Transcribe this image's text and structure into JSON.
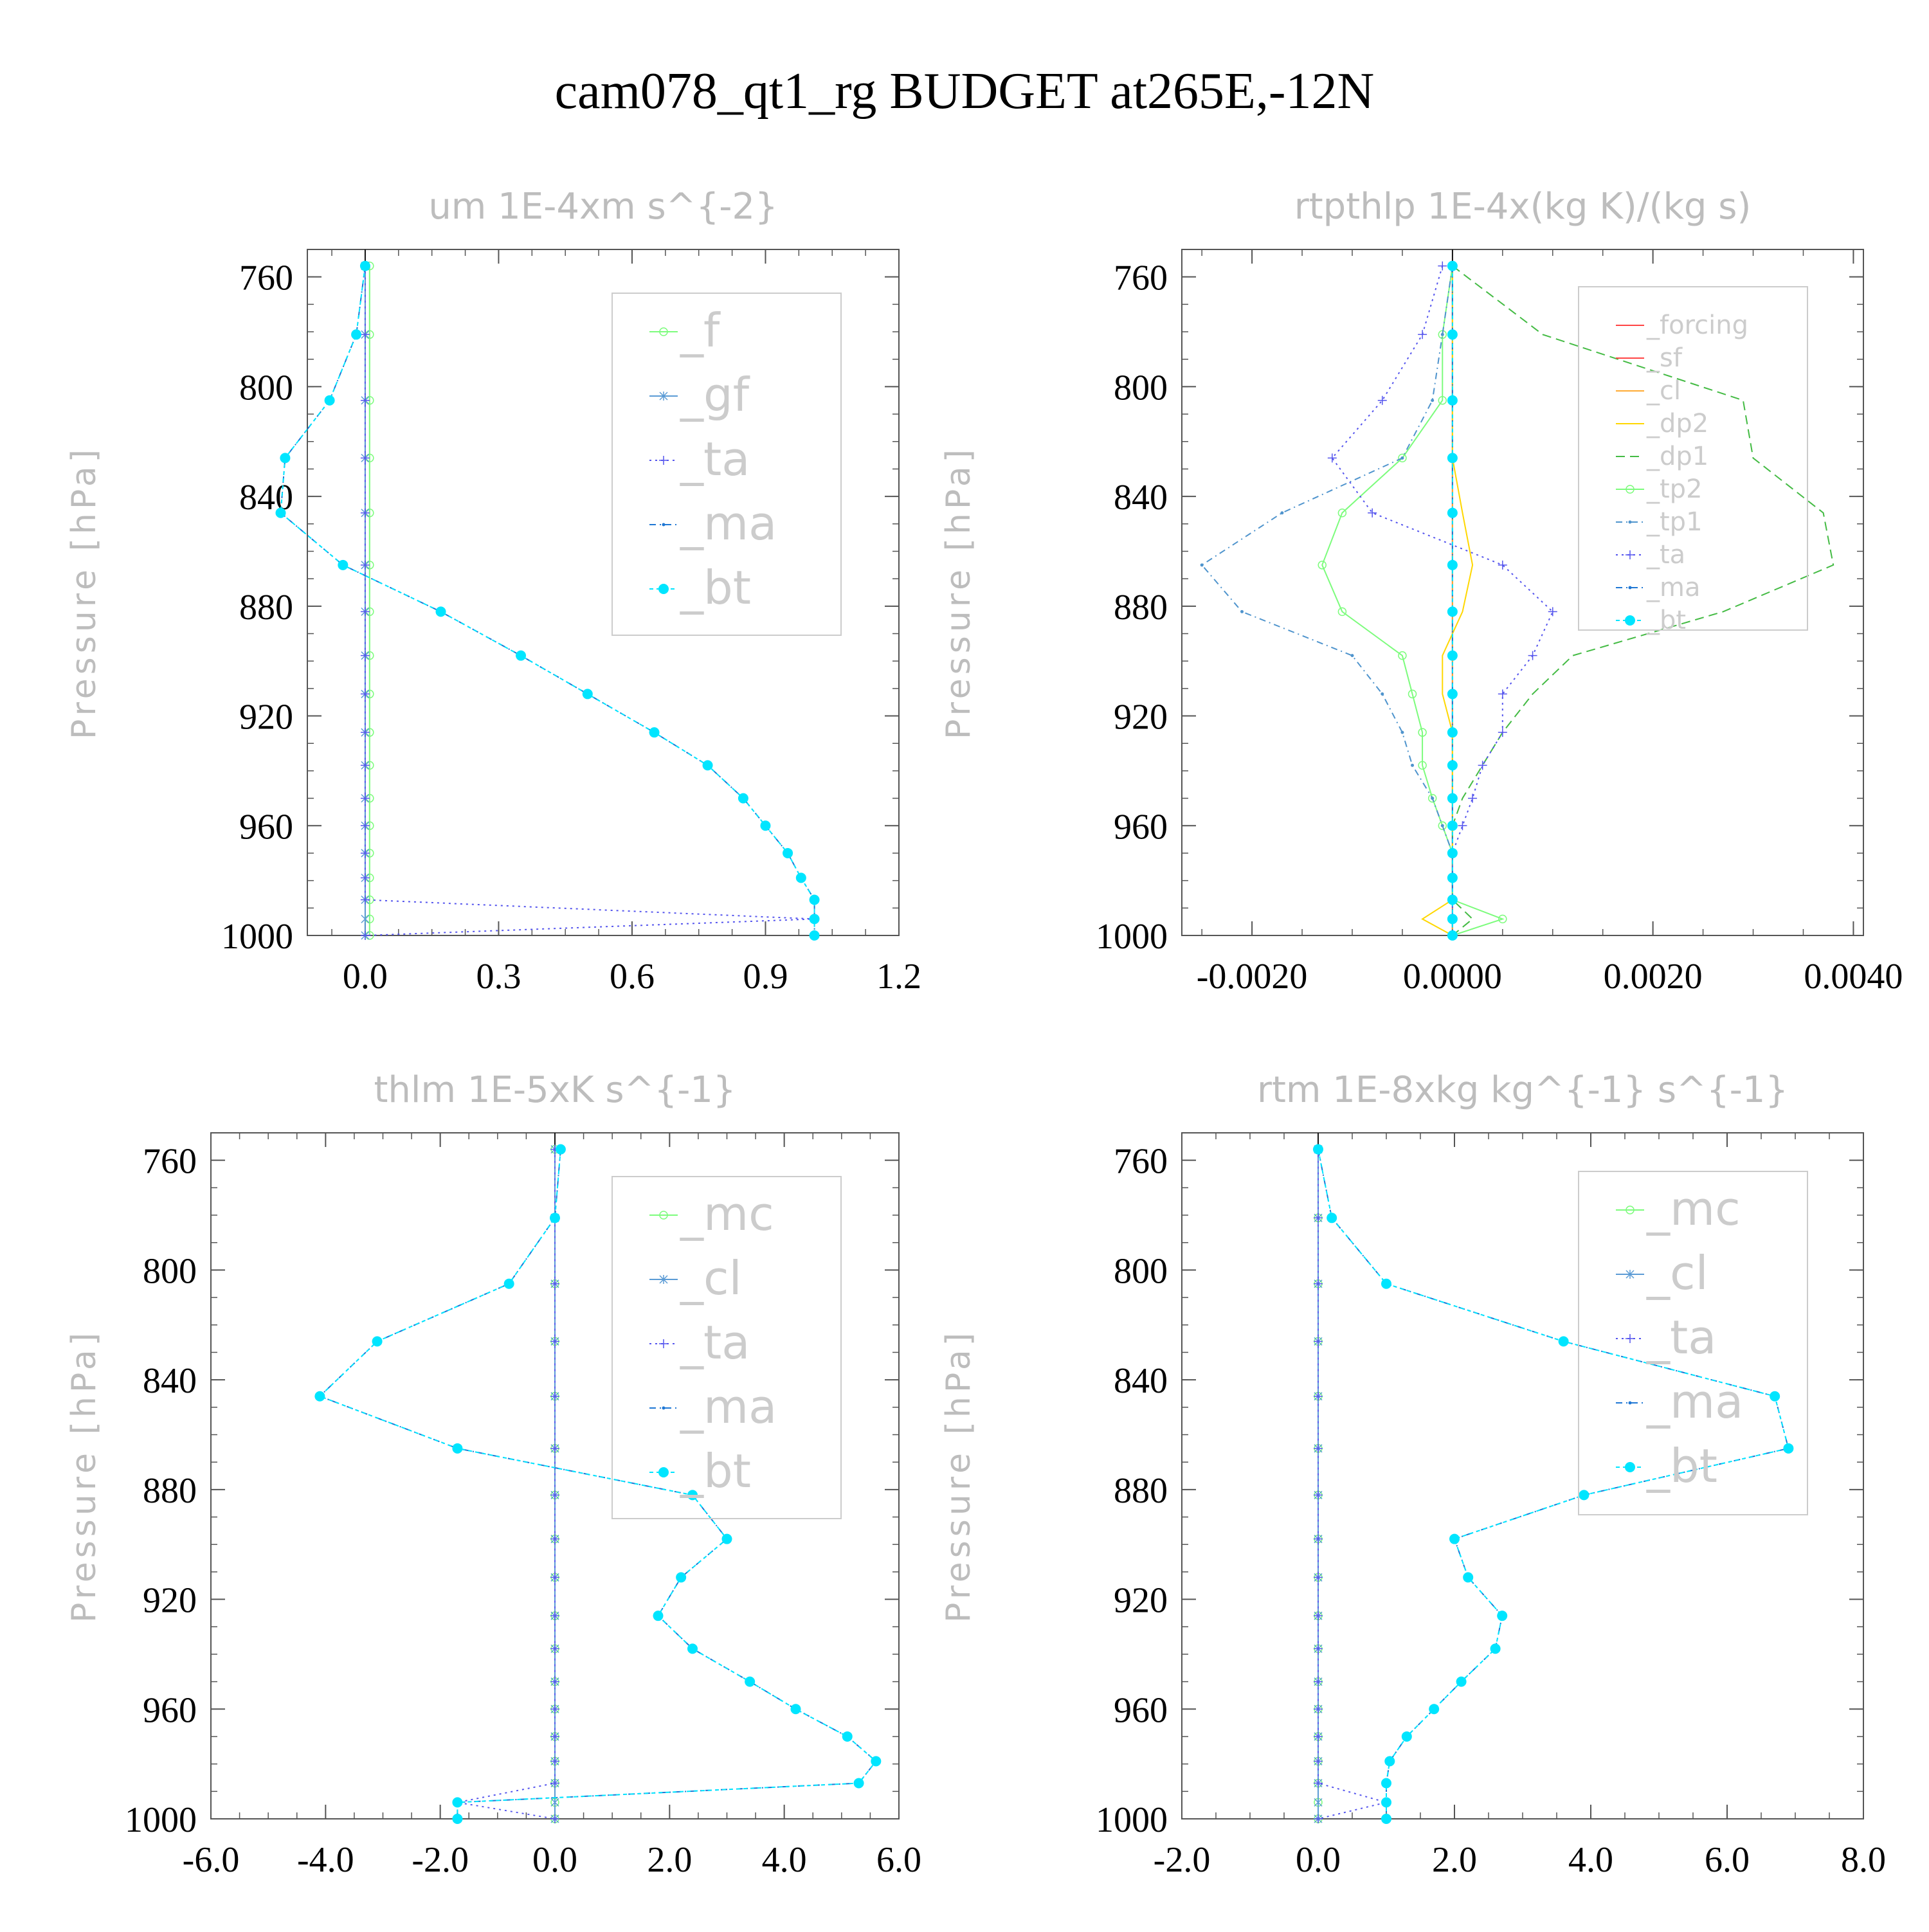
{
  "figure_title": "cam078_qt1_rg  BUDGET at265E,-12N",
  "colors": {
    "axis": "#555555",
    "title_gray": "#bdbdbd",
    "legend_gray": "#cccccc",
    "f": "#7CFC7C",
    "mc": "#7CFC7C",
    "gf": "#5b9bd5",
    "cl": "#5b9bd5",
    "ta": "#5555ee",
    "ma": "#1f77d4",
    "bt": "#00e5ff",
    "forcing": "#ff4444",
    "sf": "#ff4444",
    "cl_orange": "#ffaa33",
    "dp2": "#ffd700",
    "dp1": "#44bb44",
    "tp2": "#7CFC7C",
    "tp1": "#4f94cd"
  },
  "chart_data": [
    {
      "type": "line",
      "title": "um  1E-4xm s^{-2}",
      "ylabel": "Pressure [hPa]",
      "xlabel": "",
      "xlim": [
        -0.13,
        1.2
      ],
      "ylim": [
        1000,
        750
      ],
      "xticks": [
        "0.0",
        "0.3",
        "0.6",
        "0.9",
        "1.2"
      ],
      "xtick_values": [
        0.0,
        0.3,
        0.6,
        0.9,
        1.2
      ],
      "yticks": [
        "760",
        "800",
        "840",
        "880",
        "920",
        "960",
        "1000"
      ],
      "ytick_values": [
        760,
        800,
        840,
        880,
        920,
        960,
        1000
      ],
      "legend": [
        "_f",
        "_gf",
        "_ta",
        "_ma",
        "_bt"
      ],
      "pressure": [
        756,
        781,
        805,
        826,
        846,
        865,
        882,
        898,
        912,
        926,
        938,
        950,
        960,
        970,
        979,
        987,
        994,
        1000
      ],
      "series": [
        {
          "name": "_f",
          "color_key": "f",
          "style": "line-circle",
          "values": [
            0.01,
            0.01,
            0.01,
            0.01,
            0.01,
            0.01,
            0.01,
            0.01,
            0.01,
            0.01,
            0.01,
            0.01,
            0.01,
            0.01,
            0.01,
            0.01,
            0.01,
            0.01
          ]
        },
        {
          "name": "_gf",
          "color_key": "gf",
          "style": "line-star",
          "values": [
            0.0,
            0.0,
            0.0,
            0.0,
            0.0,
            0.0,
            0.0,
            0.0,
            0.0,
            0.0,
            0.0,
            0.0,
            0.0,
            0.0,
            0.0,
            0.0,
            0.0,
            0.0
          ]
        },
        {
          "name": "_ta",
          "color_key": "ta",
          "style": "dotted-plus",
          "values": [
            0.0,
            0.0,
            0.0,
            0.0,
            0.0,
            0.0,
            0.0,
            0.0,
            0.0,
            0.0,
            0.0,
            0.0,
            0.0,
            0.0,
            0.0,
            0.0,
            1.01,
            0.0
          ]
        },
        {
          "name": "_ma",
          "color_key": "ma",
          "style": "dash-dot",
          "values": [
            0.0,
            -0.02,
            -0.08,
            -0.18,
            -0.19,
            -0.05,
            0.17,
            0.35,
            0.5,
            0.65,
            0.77,
            0.85,
            0.9,
            0.95,
            0.98,
            1.01,
            1.01,
            1.01
          ]
        },
        {
          "name": "_bt",
          "color_key": "bt",
          "style": "dot-marker",
          "values": [
            0.0,
            -0.02,
            -0.08,
            -0.18,
            -0.19,
            -0.05,
            0.17,
            0.35,
            0.5,
            0.65,
            0.77,
            0.85,
            0.9,
            0.95,
            0.98,
            1.01,
            1.01,
            1.01
          ]
        }
      ]
    },
    {
      "type": "line",
      "title": "rtpthlp  1E-4x(kg K)/(kg s)",
      "ylabel": "Pressure [hPa]",
      "xlabel": "",
      "xlim": [
        -0.0027,
        0.0041
      ],
      "ylim": [
        1000,
        750
      ],
      "xticks": [
        "-0.0020",
        "0.0000",
        "0.0020",
        "0.0040"
      ],
      "xtick_values": [
        -0.002,
        0.0,
        0.002,
        0.004
      ],
      "yticks": [
        "760",
        "800",
        "840",
        "880",
        "920",
        "960",
        "1000"
      ],
      "ytick_values": [
        760,
        800,
        840,
        880,
        920,
        960,
        1000
      ],
      "legend": [
        "_forcing",
        "_sf",
        "_cl",
        "_dp2",
        "_dp1",
        "_tp2",
        "_tp1",
        "_ta",
        "_ma",
        "_bt"
      ],
      "pressure": [
        756,
        781,
        805,
        826,
        846,
        865,
        882,
        898,
        912,
        926,
        938,
        950,
        960,
        970,
        979,
        987,
        994,
        1000
      ],
      "series": [
        {
          "name": "_forcing",
          "color_key": "forcing",
          "style": "line",
          "values": [
            0,
            0,
            0,
            0,
            0,
            0,
            0,
            0,
            0,
            0,
            0,
            0,
            0,
            0,
            0,
            0,
            0,
            0
          ]
        },
        {
          "name": "_sf",
          "color_key": "sf",
          "style": "line",
          "values": [
            0,
            0,
            0,
            0,
            0,
            0,
            0,
            0,
            0,
            0,
            0,
            0,
            0,
            0,
            0,
            0,
            0,
            0
          ]
        },
        {
          "name": "_cl",
          "color_key": "cl_orange",
          "style": "line",
          "values": [
            0,
            0,
            0,
            0,
            0,
            0,
            0,
            0,
            0,
            0,
            0,
            0,
            0,
            0,
            0,
            0,
            0,
            0
          ]
        },
        {
          "name": "_dp2",
          "color_key": "dp2",
          "style": "line",
          "values": [
            0.0,
            0.0,
            0.0,
            0.0,
            0.0001,
            0.0002,
            0.0001,
            -0.0001,
            -0.0001,
            0.0,
            0.0,
            0.0,
            0.0,
            0.0,
            0.0,
            0.0,
            -0.0003,
            0.0
          ]
        },
        {
          "name": "_dp1",
          "color_key": "dp1",
          "style": "dash",
          "values": [
            0.0,
            0.0009,
            0.0029,
            0.003,
            0.0037,
            0.0038,
            0.0027,
            0.0012,
            0.0008,
            0.0005,
            0.0003,
            0.0001,
            0.0,
            0.0,
            0.0,
            0.0,
            0.0002,
            0.0
          ]
        },
        {
          "name": "_tp2",
          "color_key": "tp2",
          "style": "line-circle",
          "values": [
            0.0,
            -0.0001,
            -0.0001,
            -0.0005,
            -0.0011,
            -0.0013,
            -0.0011,
            -0.0005,
            -0.0004,
            -0.0003,
            -0.0003,
            -0.0002,
            -0.0001,
            0.0,
            0.0,
            0.0,
            0.0005,
            0.0
          ]
        },
        {
          "name": "_tp1",
          "color_key": "tp1",
          "style": "dash-dot",
          "values": [
            0.0,
            -0.0001,
            -0.0002,
            -0.0005,
            -0.0017,
            -0.0025,
            -0.0021,
            -0.001,
            -0.0007,
            -0.0005,
            -0.0004,
            -0.0002,
            -0.0001,
            0.0,
            0.0,
            0.0,
            0.0,
            0.0
          ]
        },
        {
          "name": "_ta",
          "color_key": "ta",
          "style": "dotted-plus",
          "values": [
            -0.0001,
            -0.0003,
            -0.0007,
            -0.0012,
            -0.0008,
            0.0005,
            0.001,
            0.0008,
            0.0005,
            0.0005,
            0.0003,
            0.0002,
            0.0001,
            0.0,
            0.0,
            0.0,
            0.0,
            0.0
          ]
        },
        {
          "name": "_ma",
          "color_key": "ma",
          "style": "dash-dot",
          "values": [
            0,
            0,
            0,
            0,
            0,
            0,
            0,
            0,
            0,
            0,
            0,
            0,
            0,
            0,
            0,
            0,
            0,
            0
          ]
        },
        {
          "name": "_bt",
          "color_key": "bt",
          "style": "dot-marker",
          "values": [
            0,
            0,
            0,
            0,
            0,
            0,
            0,
            0,
            0,
            0,
            0,
            0,
            0,
            0,
            0,
            0,
            0,
            0
          ]
        }
      ]
    },
    {
      "type": "line",
      "title": "thlm  1E-5xK s^{-1}",
      "ylabel": "Pressure [hPa]",
      "xlabel": "",
      "xlim": [
        -6.0,
        6.0
      ],
      "ylim": [
        1000,
        750
      ],
      "xticks": [
        "-6.0",
        "-4.0",
        "-2.0",
        "0.0",
        "2.0",
        "4.0",
        "6.0"
      ],
      "xtick_values": [
        -6.0,
        -4.0,
        -2.0,
        0.0,
        2.0,
        4.0,
        6.0
      ],
      "yticks": [
        "760",
        "800",
        "840",
        "880",
        "920",
        "960",
        "1000"
      ],
      "ytick_values": [
        760,
        800,
        840,
        880,
        920,
        960,
        1000
      ],
      "legend": [
        "_mc",
        "_cl",
        "_ta",
        "_ma",
        "_bt"
      ],
      "pressure": [
        756,
        781,
        805,
        826,
        846,
        865,
        882,
        898,
        912,
        926,
        938,
        950,
        960,
        970,
        979,
        987,
        994,
        1000
      ],
      "series": [
        {
          "name": "_mc",
          "color_key": "mc",
          "style": "line-circle",
          "values": [
            0.0,
            0.0,
            0.0,
            0.0,
            0.0,
            0.0,
            0.0,
            0.0,
            0.0,
            0.0,
            0.0,
            0.0,
            0.0,
            0.0,
            0.0,
            0.0,
            0.0,
            0.0
          ]
        },
        {
          "name": "_cl",
          "color_key": "cl",
          "style": "line-star",
          "values": [
            0.0,
            0.0,
            0.0,
            0.0,
            0.0,
            0.0,
            0.0,
            0.0,
            0.0,
            0.0,
            0.0,
            0.0,
            0.0,
            0.0,
            0.0,
            0.0,
            0.0,
            0.0
          ]
        },
        {
          "name": "_ta",
          "color_key": "ta",
          "style": "dotted-plus",
          "values": [
            0.0,
            0.0,
            0.0,
            0.0,
            0.0,
            0.0,
            0.0,
            0.0,
            0.0,
            0.0,
            0.0,
            0.0,
            0.0,
            0.0,
            0.0,
            0.0,
            -1.7,
            0.0
          ]
        },
        {
          "name": "_ma",
          "color_key": "ma",
          "style": "dash-dot",
          "values": [
            0.1,
            0.0,
            -0.8,
            -3.1,
            -4.1,
            -1.7,
            2.4,
            3.0,
            2.2,
            1.8,
            2.4,
            3.4,
            4.2,
            5.1,
            5.6,
            5.3,
            -1.7,
            -1.7
          ]
        },
        {
          "name": "_bt",
          "color_key": "bt",
          "style": "dot-marker",
          "values": [
            0.1,
            0.0,
            -0.8,
            -3.1,
            -4.1,
            -1.7,
            2.4,
            3.0,
            2.2,
            1.8,
            2.4,
            3.4,
            4.2,
            5.1,
            5.6,
            5.3,
            -1.7,
            -1.7
          ]
        }
      ]
    },
    {
      "type": "line",
      "title": "rtm  1E-8xkg kg^{-1} s^{-1}",
      "ylabel": "Pressure [hPa]",
      "xlabel": "",
      "xlim": [
        -2.0,
        8.0
      ],
      "ylim": [
        1000,
        750
      ],
      "xticks": [
        "-2.0",
        "0.0",
        "2.0",
        "4.0",
        "6.0",
        "8.0"
      ],
      "xtick_values": [
        -2.0,
        0.0,
        2.0,
        4.0,
        6.0,
        8.0
      ],
      "yticks": [
        "760",
        "800",
        "840",
        "880",
        "920",
        "960",
        "1000"
      ],
      "ytick_values": [
        760,
        800,
        840,
        880,
        920,
        960,
        1000
      ],
      "legend": [
        "_mc",
        "_cl",
        "_ta",
        "_ma",
        "_bt"
      ],
      "pressure": [
        756,
        781,
        805,
        826,
        846,
        865,
        882,
        898,
        912,
        926,
        938,
        950,
        960,
        970,
        979,
        987,
        994,
        1000
      ],
      "series": [
        {
          "name": "_mc",
          "color_key": "mc",
          "style": "line-circle",
          "values": [
            0.0,
            0.0,
            0.0,
            0.0,
            0.0,
            0.0,
            0.0,
            0.0,
            0.0,
            0.0,
            0.0,
            0.0,
            0.0,
            0.0,
            0.0,
            0.0,
            0.0,
            0.0
          ]
        },
        {
          "name": "_cl",
          "color_key": "cl",
          "style": "line-star",
          "values": [
            0.0,
            0.0,
            0.0,
            0.0,
            0.0,
            0.0,
            0.0,
            0.0,
            0.0,
            0.0,
            0.0,
            0.0,
            0.0,
            0.0,
            0.0,
            0.0,
            0.0,
            0.0
          ]
        },
        {
          "name": "_ta",
          "color_key": "ta",
          "style": "dotted-plus",
          "values": [
            0.0,
            0.0,
            0.0,
            0.0,
            0.0,
            0.0,
            0.0,
            0.0,
            0.0,
            0.0,
            0.0,
            0.0,
            0.0,
            0.0,
            0.0,
            0.0,
            1.0,
            0.0
          ]
        },
        {
          "name": "_ma",
          "color_key": "ma",
          "style": "dash-dot",
          "values": [
            0.0,
            0.2,
            1.0,
            3.6,
            6.7,
            6.9,
            3.9,
            2.0,
            2.2,
            2.7,
            2.6,
            2.1,
            1.7,
            1.3,
            1.05,
            1.0,
            1.0,
            1.0
          ]
        },
        {
          "name": "_bt",
          "color_key": "bt",
          "style": "dot-marker",
          "values": [
            0.0,
            0.2,
            1.0,
            3.6,
            6.7,
            6.9,
            3.9,
            2.0,
            2.2,
            2.7,
            2.6,
            2.1,
            1.7,
            1.3,
            1.05,
            1.0,
            1.0,
            1.0
          ]
        }
      ]
    }
  ]
}
